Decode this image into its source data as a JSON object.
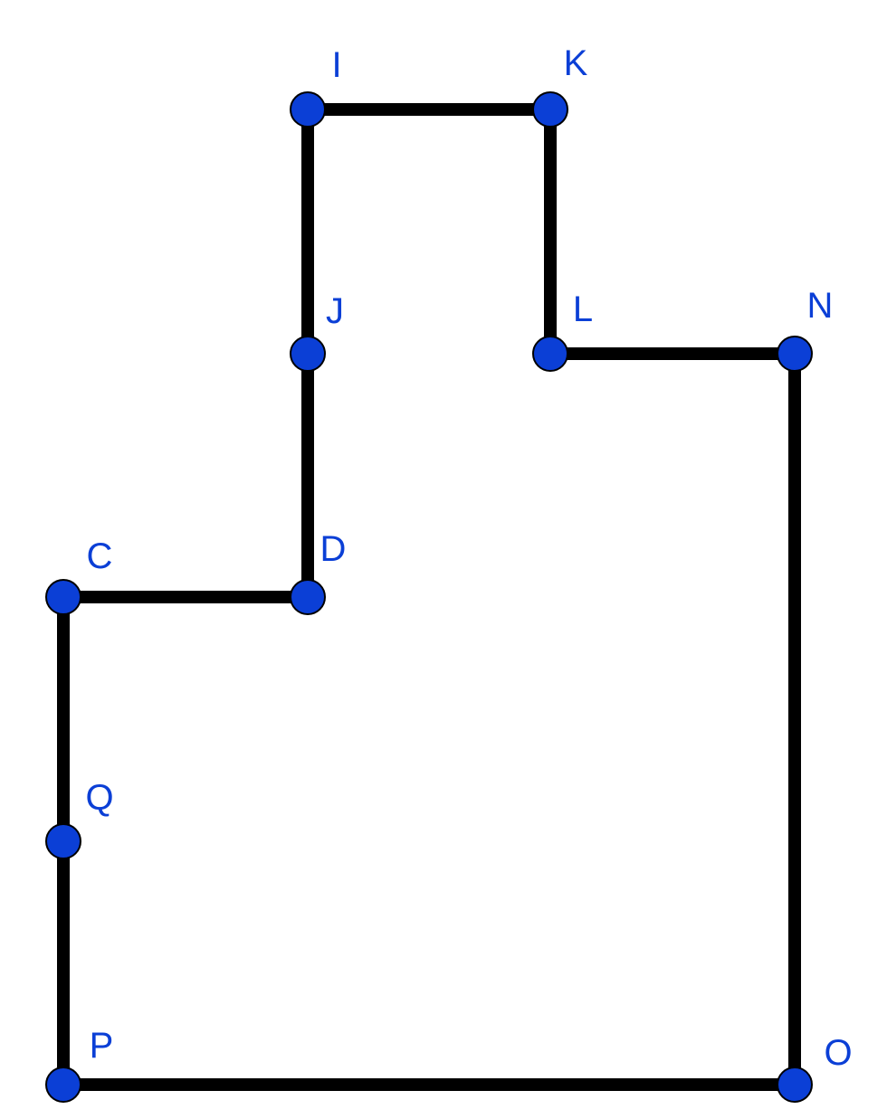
{
  "colors": {
    "edge": "#000000",
    "vertex": "#0b3fd6",
    "label": "#0b3fd6",
    "background": "#ffffff"
  },
  "vertices": [
    {
      "id": "I",
      "label": "I"
    },
    {
      "id": "K",
      "label": "K"
    },
    {
      "id": "J",
      "label": "J"
    },
    {
      "id": "L",
      "label": "L"
    },
    {
      "id": "N",
      "label": "N"
    },
    {
      "id": "C",
      "label": "C"
    },
    {
      "id": "D",
      "label": "D"
    },
    {
      "id": "Q",
      "label": "Q"
    },
    {
      "id": "P",
      "label": "P"
    },
    {
      "id": "O",
      "label": "O"
    }
  ],
  "edges": [
    [
      "I",
      "K"
    ],
    [
      "K",
      "L"
    ],
    [
      "L",
      "N"
    ],
    [
      "N",
      "O"
    ],
    [
      "O",
      "P"
    ],
    [
      "P",
      "Q"
    ],
    [
      "Q",
      "C"
    ],
    [
      "C",
      "D"
    ],
    [
      "D",
      "J"
    ],
    [
      "J",
      "I"
    ]
  ]
}
